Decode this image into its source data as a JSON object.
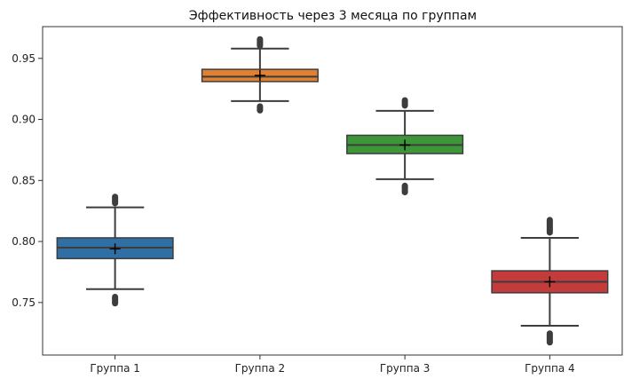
{
  "chart_data": {
    "type": "box",
    "title": "Эффективность через 3 месяца по группам",
    "xlabel": "",
    "ylabel": "",
    "categories": [
      "Группа 1",
      "Группа 2",
      "Группа 3",
      "Группа 4"
    ],
    "ylim": [
      0.707,
      0.976
    ],
    "yticks": [
      0.75,
      0.8,
      0.85,
      0.9,
      0.95
    ],
    "ytick_labels": [
      "0.75",
      "0.80",
      "0.85",
      "0.90",
      "0.95"
    ],
    "grid": false,
    "boxes": [
      {
        "category": "Группа 1",
        "color": "#2f6fa3",
        "whisker_low": 0.761,
        "q1": 0.786,
        "median": 0.795,
        "q3": 0.803,
        "whisker_high": 0.828,
        "mean": 0.794,
        "outliers_low": [
          0.749,
          0.755
        ],
        "outliers_high": [
          0.831,
          0.837
        ]
      },
      {
        "category": "Группа 2",
        "color": "#e08030",
        "whisker_low": 0.915,
        "q1": 0.931,
        "median": 0.935,
        "q3": 0.941,
        "whisker_high": 0.958,
        "mean": 0.936,
        "outliers_low": [
          0.907,
          0.911
        ],
        "outliers_high": [
          0.96,
          0.966
        ]
      },
      {
        "category": "Группа 3",
        "color": "#3d9638",
        "whisker_low": 0.851,
        "q1": 0.872,
        "median": 0.879,
        "q3": 0.887,
        "whisker_high": 0.907,
        "mean": 0.879,
        "outliers_low": [
          0.84,
          0.846
        ],
        "outliers_high": [
          0.911,
          0.916
        ]
      },
      {
        "category": "Группа 4",
        "color": "#c43b3b",
        "whisker_low": 0.731,
        "q1": 0.758,
        "median": 0.767,
        "q3": 0.776,
        "whisker_high": 0.803,
        "mean": 0.767,
        "outliers_low": [
          0.717,
          0.725
        ],
        "outliers_high": [
          0.807,
          0.818
        ]
      }
    ]
  }
}
